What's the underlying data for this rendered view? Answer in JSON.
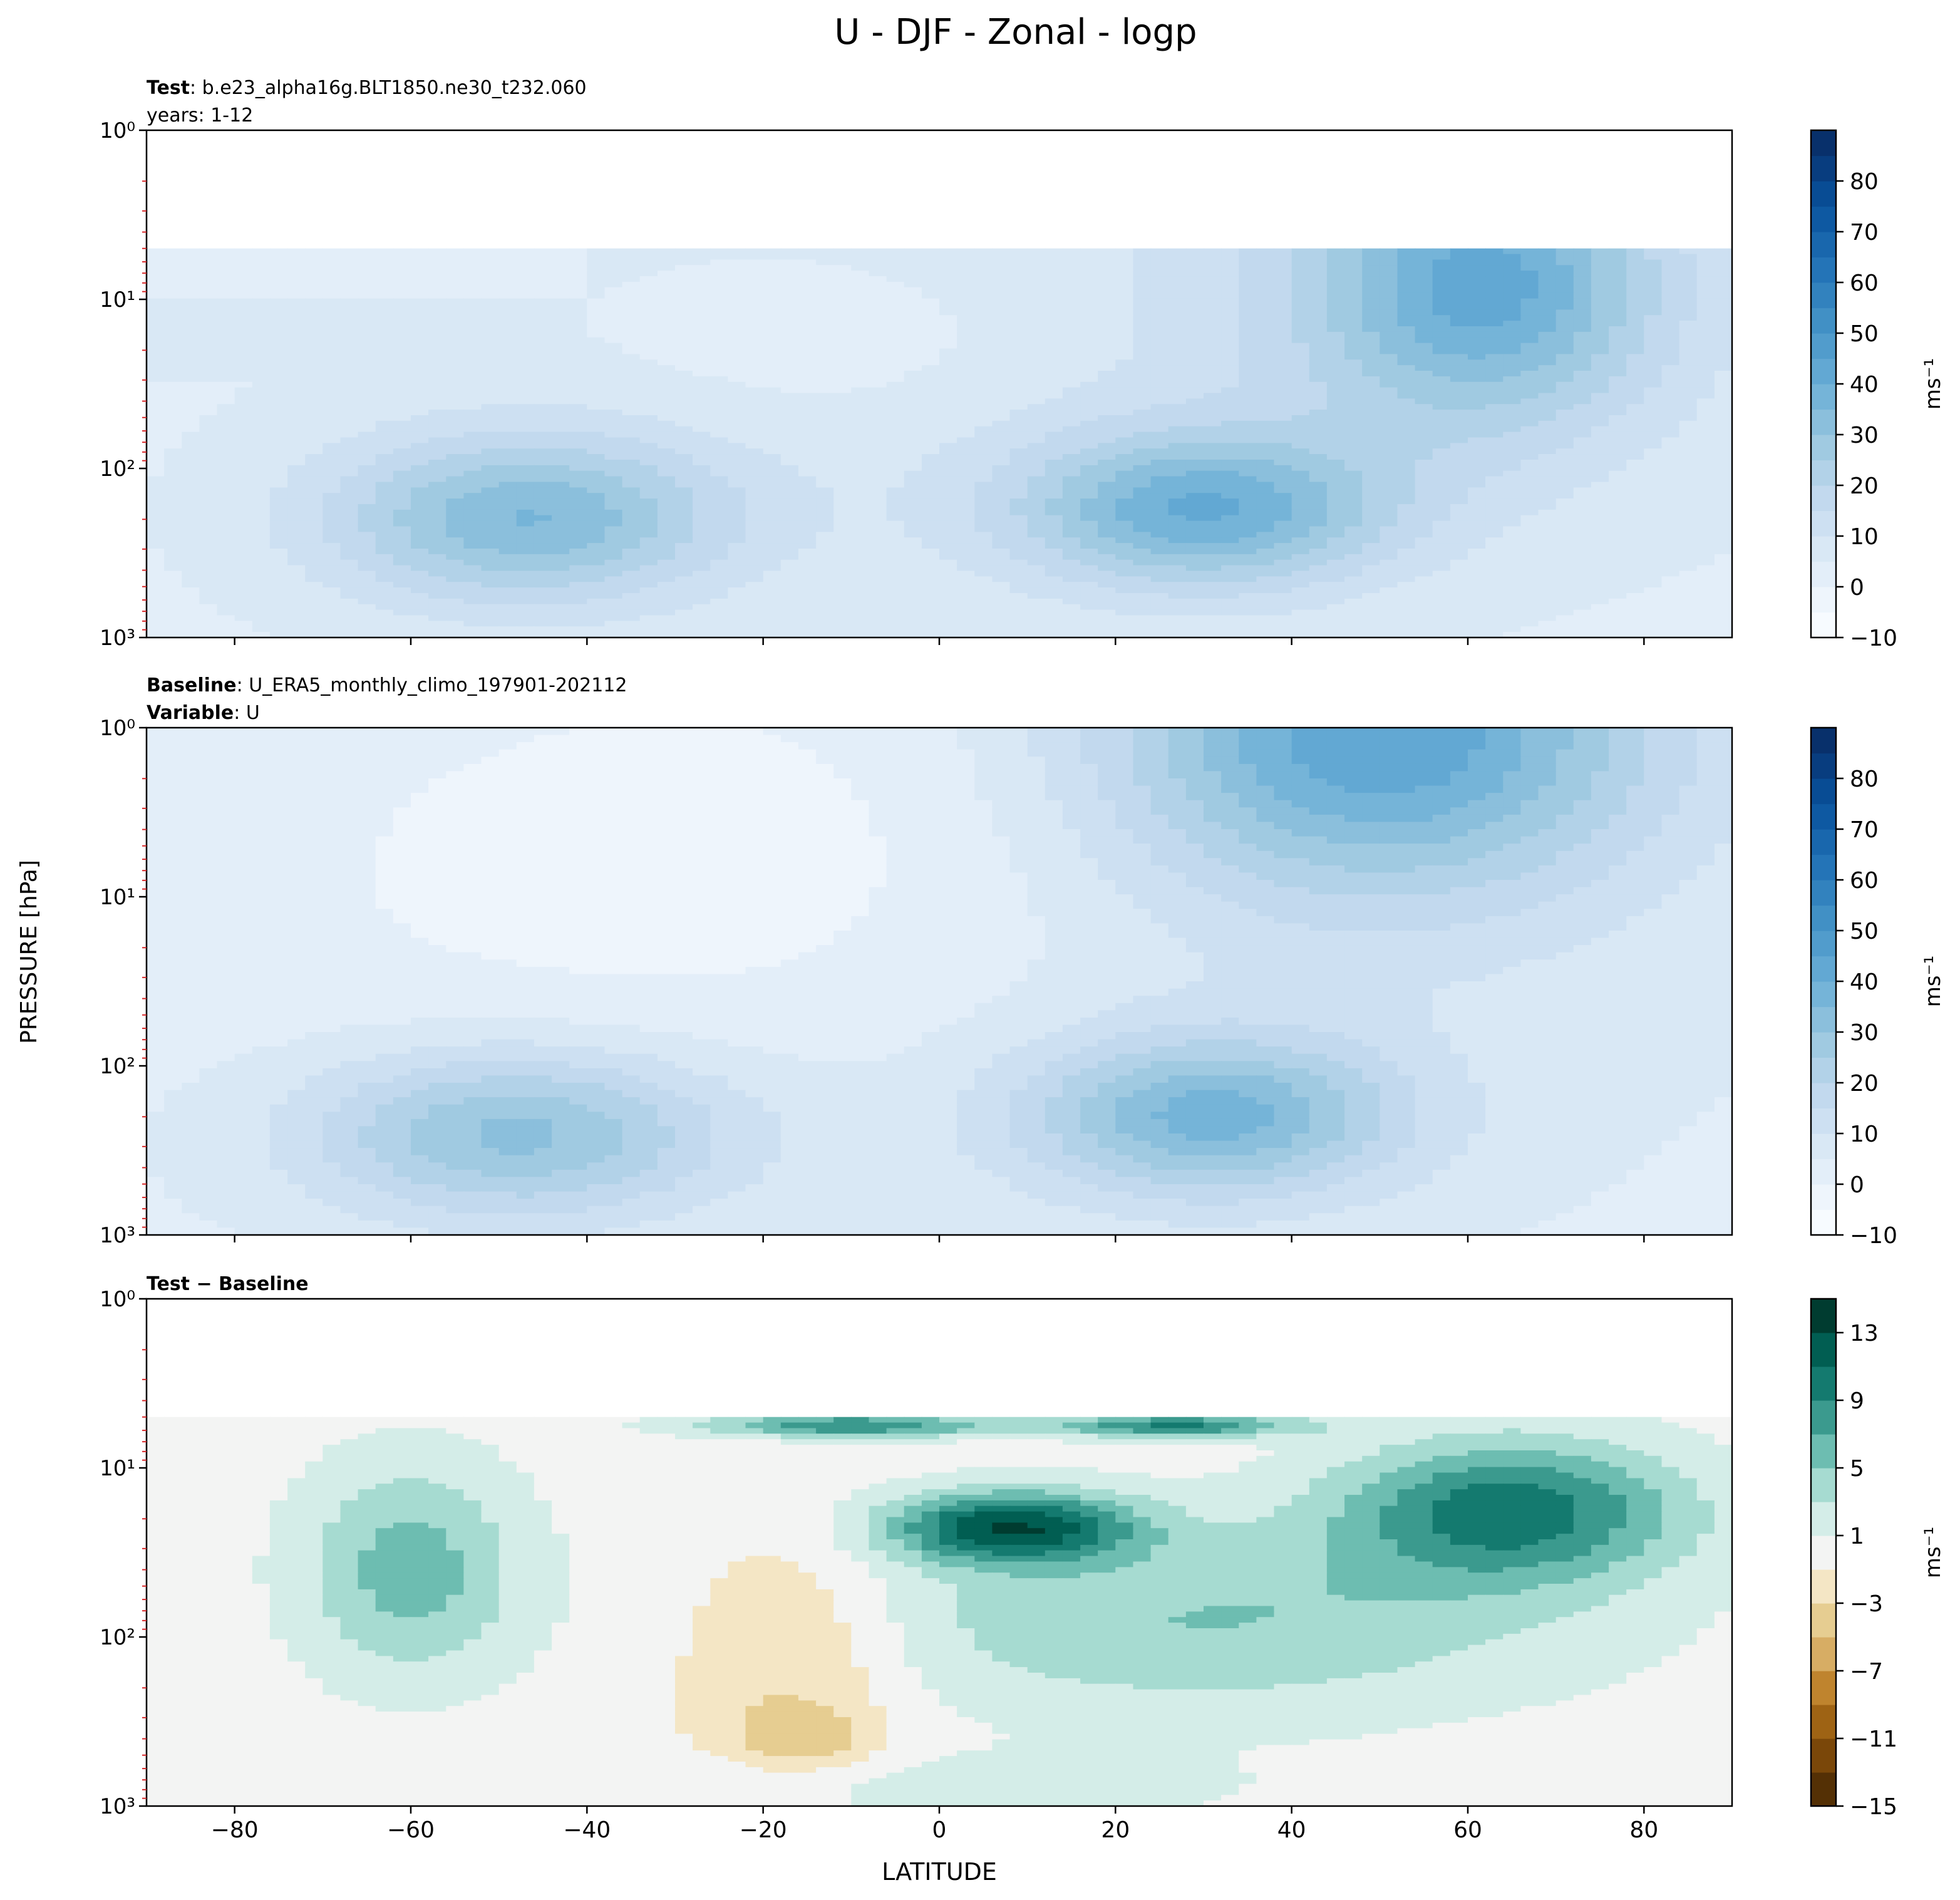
{
  "figure": {
    "title": "U - DJF - Zonal - logp",
    "ylabel": "PRESSURE [hPa]",
    "xlabel": "LATITUDE"
  },
  "panels": [
    {
      "header_lines": [
        {
          "bold": "Test",
          "text": ": b.e23_alpha16g.BLT1850.ne30_t232.060"
        },
        {
          "bold": "",
          "text": "years: 1-12"
        }
      ],
      "colorbar": {
        "label": "ms⁻¹",
        "ticks": [
          "−10",
          "0",
          "10",
          "20",
          "30",
          "40",
          "50",
          "60",
          "70",
          "80"
        ]
      }
    },
    {
      "header_lines": [
        {
          "bold": "Baseline",
          "text": ": U_ERA5_monthly_climo_197901-202112"
        },
        {
          "bold": "Variable",
          "text": ": U"
        }
      ],
      "colorbar": {
        "label": "ms⁻¹",
        "ticks": [
          "−10",
          "0",
          "10",
          "20",
          "30",
          "40",
          "50",
          "60",
          "70",
          "80"
        ]
      }
    },
    {
      "header_lines": [
        {
          "bold": "Test − Baseline",
          "text": ""
        }
      ],
      "colorbar": {
        "label": "ms⁻¹",
        "ticks": [
          "−15",
          "−11",
          "−7",
          "−3",
          "1",
          "5",
          "9",
          "13"
        ]
      }
    }
  ],
  "axes": {
    "x_ticks": [
      "−80",
      "−60",
      "−40",
      "−20",
      "0",
      "20",
      "40",
      "60",
      "80"
    ],
    "y_tick_labels": [
      "10⁰",
      "10¹",
      "10²",
      "10³"
    ]
  },
  "chart_data": [
    {
      "type": "heatmap",
      "title": "Test",
      "x_range": [
        -90,
        90
      ],
      "y_range_hpa": [
        1000,
        1
      ],
      "y_scale": "log",
      "data_top_hpa": 5,
      "levels": [
        -10,
        -5,
        0,
        5,
        10,
        15,
        20,
        25,
        30,
        35,
        40,
        45,
        50,
        55,
        60,
        65,
        70,
        75,
        80,
        85
      ],
      "features": [
        {
          "lat": -47,
          "p": 200,
          "max": 38
        },
        {
          "lat": 30,
          "p": 180,
          "max": 42
        },
        {
          "lat": 65,
          "p": 8,
          "max": 40
        }
      ]
    },
    {
      "type": "heatmap",
      "title": "Baseline",
      "x_range": [
        -90,
        90
      ],
      "y_range_hpa": [
        1000,
        1
      ],
      "y_scale": "log",
      "levels": [
        -10,
        -5,
        0,
        5,
        10,
        15,
        20,
        25,
        30,
        35,
        40,
        45,
        50,
        55,
        60,
        65,
        70,
        75,
        80,
        85
      ],
      "features": [
        {
          "lat": -48,
          "p": 250,
          "max": 36
        },
        {
          "lat": 31,
          "p": 200,
          "max": 40
        },
        {
          "lat": 50,
          "p": 1,
          "max": 48
        }
      ]
    },
    {
      "type": "heatmap",
      "title": "Test − Baseline",
      "x_range": [
        -90,
        90
      ],
      "y_range_hpa": [
        1000,
        1
      ],
      "y_scale": "log",
      "data_top_hpa": 5,
      "levels": [
        -15,
        -13,
        -11,
        -9,
        -7,
        -5,
        -3,
        -1,
        1,
        3,
        5,
        7,
        9,
        11,
        13
      ],
      "features": [
        {
          "lat": 8,
          "p": 22,
          "max": 12
        },
        {
          "lat": 65,
          "p": 15,
          "max": 10
        },
        {
          "lat": -60,
          "p": 40,
          "max": 5
        },
        {
          "lat": -15,
          "p": 120,
          "min": -4
        }
      ]
    }
  ]
}
